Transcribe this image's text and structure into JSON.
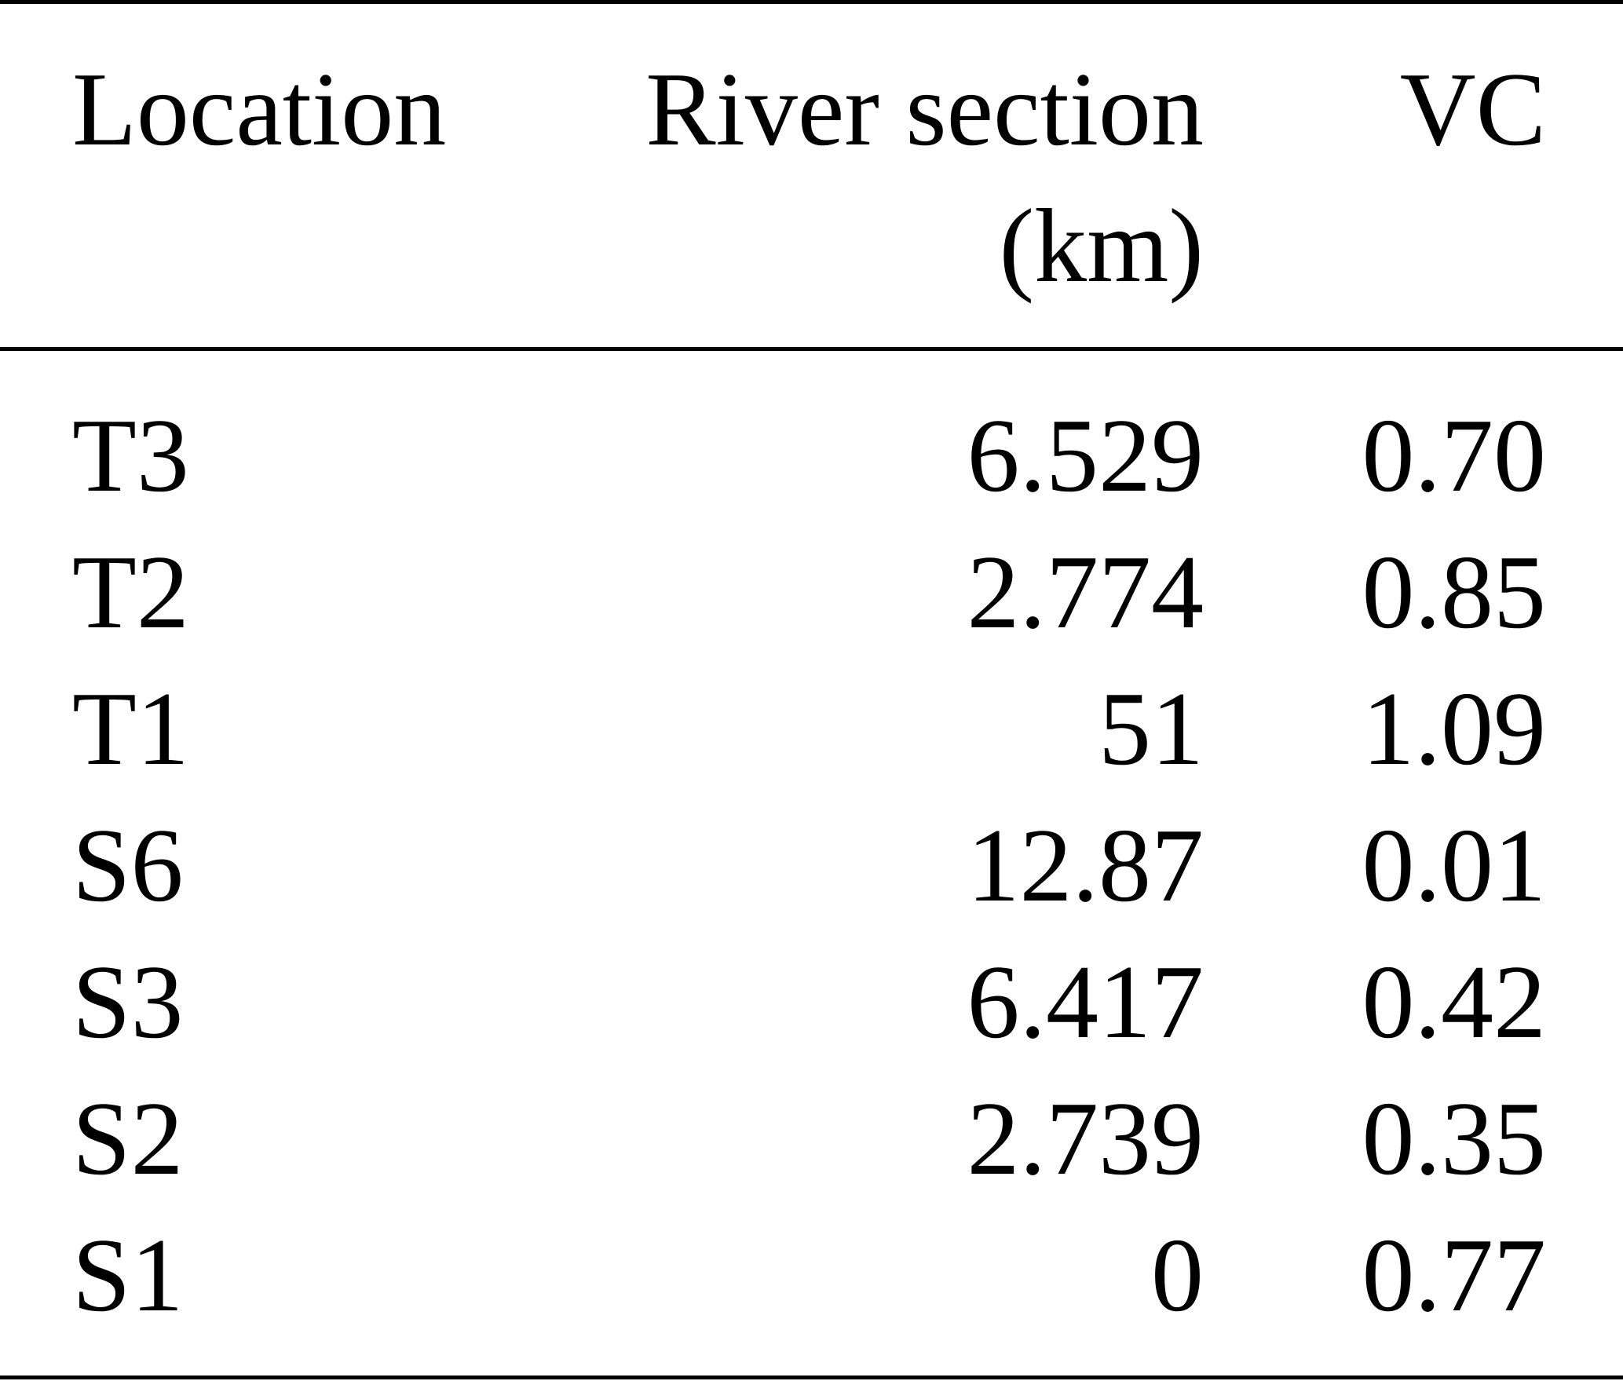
{
  "table": {
    "headers": {
      "location": "Location",
      "river_section_line1": "River section",
      "river_section_line2": "(km)",
      "vc": "VC"
    },
    "rows": [
      {
        "location": "T3",
        "river_section": "6.529",
        "vc": "0.70"
      },
      {
        "location": "T2",
        "river_section": "2.774",
        "vc": "0.85"
      },
      {
        "location": "T1",
        "river_section": "51",
        "vc": "1.09"
      },
      {
        "location": "S6",
        "river_section": "12.87",
        "vc": "0.01"
      },
      {
        "location": "S3",
        "river_section": "6.417",
        "vc": "0.42"
      },
      {
        "location": "S2",
        "river_section": "2.739",
        "vc": "0.35"
      },
      {
        "location": "S1",
        "river_section": "0",
        "vc": "0.77"
      }
    ]
  }
}
